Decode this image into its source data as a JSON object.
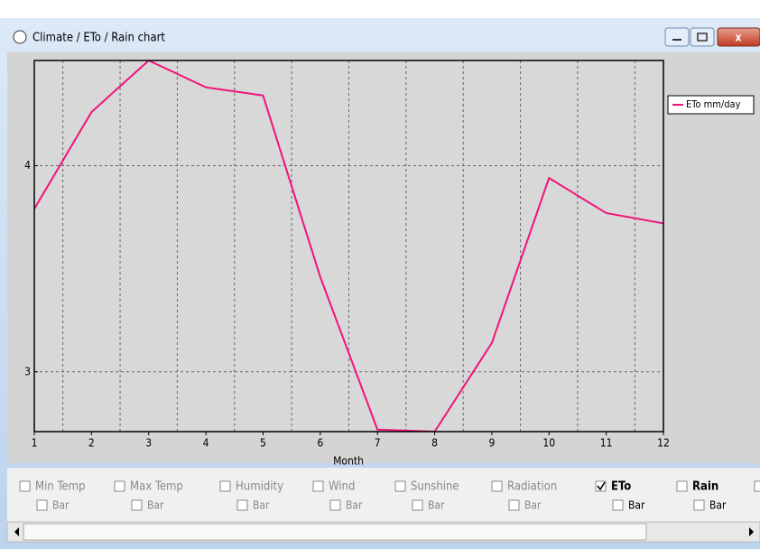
{
  "window": {
    "title": "Climate / ETo / Rain chart"
  },
  "chart_data": {
    "type": "line",
    "xlabel": "Month",
    "x": [
      1,
      2,
      3,
      4,
      5,
      6,
      7,
      8,
      9,
      10,
      11,
      12
    ],
    "series": [
      {
        "name": "ETo  mm/day",
        "color": "#f0147a",
        "values": [
          3.79,
          4.26,
          4.51,
          4.38,
          4.34,
          3.46,
          2.72,
          2.71,
          3.14,
          3.94,
          3.77,
          3.72
        ]
      }
    ],
    "xlim": [
      1,
      12
    ],
    "xticks": [
      1,
      2,
      3,
      4,
      5,
      6,
      7,
      8,
      9,
      10,
      11,
      12
    ],
    "ylim": [
      2.71,
      4.51
    ],
    "yticks": [
      3,
      4
    ],
    "grid": true,
    "legend": "upper right"
  },
  "controls": [
    {
      "label": "Min Temp",
      "checked": false,
      "enabled": false,
      "bar": "Bar",
      "bar_checked": false
    },
    {
      "label": "Max Temp",
      "checked": false,
      "enabled": false,
      "bar": "Bar",
      "bar_checked": false
    },
    {
      "label": "Humidity",
      "checked": false,
      "enabled": false,
      "bar": "Bar",
      "bar_checked": false
    },
    {
      "label": "Wind",
      "checked": false,
      "enabled": false,
      "bar": "Bar",
      "bar_checked": false
    },
    {
      "label": "Sunshine",
      "checked": false,
      "enabled": false,
      "bar": "Bar",
      "bar_checked": false
    },
    {
      "label": "Radiation",
      "checked": false,
      "enabled": false,
      "bar": "Bar",
      "bar_checked": false
    },
    {
      "label": "ETo",
      "checked": true,
      "enabled": true,
      "bar": "Bar",
      "bar_checked": false
    },
    {
      "label": "Rain",
      "checked": false,
      "enabled": true,
      "bar": "Bar",
      "bar_checked": false
    }
  ]
}
